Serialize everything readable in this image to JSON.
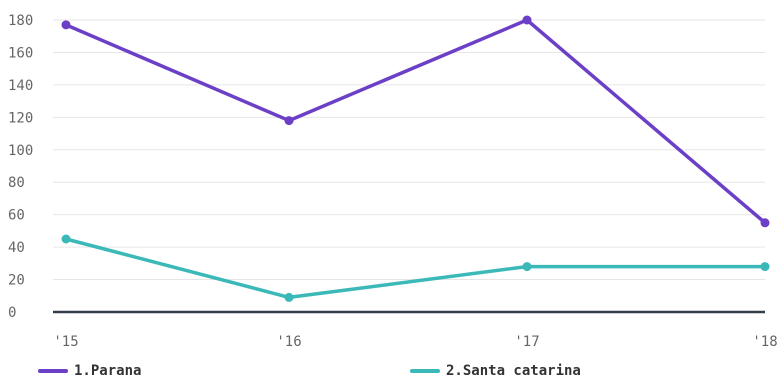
{
  "chart_data": {
    "type": "line",
    "x": [
      "'15",
      "'16",
      "'17",
      "'18"
    ],
    "yticks": [
      "0",
      "20",
      "40",
      "60",
      "80",
      "100",
      "120",
      "140",
      "160",
      "180"
    ],
    "ylim": [
      0,
      180
    ],
    "grid": true,
    "legend_position": "bottom",
    "series": [
      {
        "name": "1.Parana",
        "color": "#6c3fc7",
        "values": [
          177,
          118,
          180,
          55
        ]
      },
      {
        "name": "2.Santa catarina",
        "color": "#3bb8b8",
        "values": [
          45,
          9,
          28,
          28
        ]
      }
    ]
  }
}
